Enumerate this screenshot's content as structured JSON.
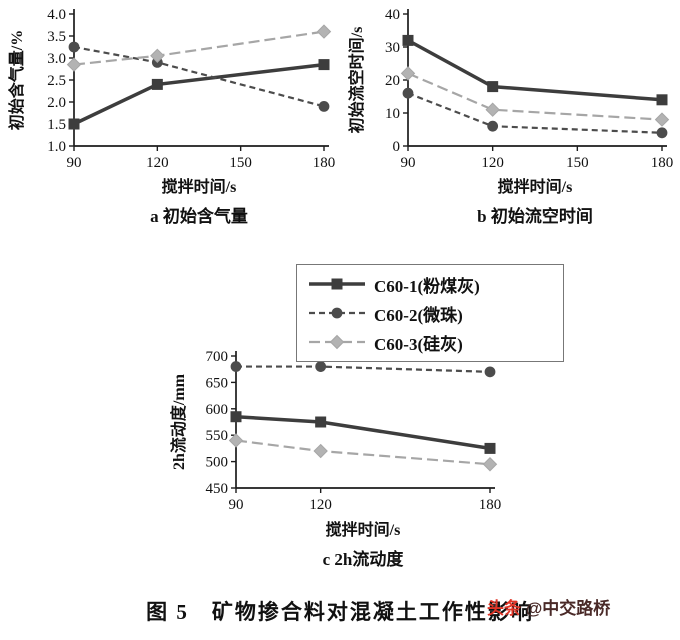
{
  "figure": {
    "caption": "图 5　矿物掺合料对混凝土工作性影响",
    "watermark_prefix": "头条",
    "watermark_handle": "@中交路桥"
  },
  "series_styles": [
    {
      "color": "#3d3d3d",
      "width": 3.5,
      "dash": "",
      "marker": "square",
      "mcolor": "#3d3d3d"
    },
    {
      "color": "#4c4c4c",
      "width": 2.2,
      "dash": "6,4",
      "marker": "circle",
      "mcolor": "#4c4c4c"
    },
    {
      "color": "#a6a6a6",
      "width": 2.2,
      "dash": "11,5",
      "marker": "diamond",
      "mcolor": "#b3b3b3"
    }
  ],
  "chart_data": [
    {
      "id": "a",
      "type": "line",
      "title": "a  初始含气量",
      "xlabel": "搅拌时间/s",
      "ylabel": "初始含气量/%",
      "xlim": [
        90,
        180
      ],
      "x": [
        90,
        120,
        180
      ],
      "xticks": [
        90,
        120,
        150,
        180
      ],
      "ylim": [
        1.0,
        4.0
      ],
      "yticks": [
        1.0,
        1.5,
        2.0,
        2.5,
        3.0,
        3.5,
        4.0
      ],
      "ydecimals": 1,
      "series": [
        {
          "name": "C60-1(粉煤灰)",
          "values": [
            1.5,
            2.4,
            2.85
          ]
        },
        {
          "name": "C60-2(微珠)",
          "values": [
            3.25,
            2.9,
            1.9
          ]
        },
        {
          "name": "C60-3(硅灰)",
          "values": [
            2.85,
            3.05,
            3.6
          ]
        }
      ]
    },
    {
      "id": "b",
      "type": "line",
      "title": "b  初始流空时间",
      "xlabel": "搅拌时间/s",
      "ylabel": "初始流空时间/s",
      "xlim": [
        90,
        180
      ],
      "x": [
        90,
        120,
        180
      ],
      "xticks": [
        90,
        120,
        150,
        180
      ],
      "ylim": [
        0,
        40
      ],
      "yticks": [
        0,
        10,
        20,
        30,
        40
      ],
      "ydecimals": 0,
      "series": [
        {
          "name": "C60-1(粉煤灰)",
          "values": [
            32,
            18,
            14
          ]
        },
        {
          "name": "C60-2(微珠)",
          "values": [
            16,
            6,
            4
          ]
        },
        {
          "name": "C60-3(硅灰)",
          "values": [
            22,
            11,
            8
          ]
        }
      ]
    },
    {
      "id": "c",
      "type": "line",
      "title": "c  2h流动度",
      "xlabel": "搅拌时间/s",
      "ylabel": "2h流动度/mm",
      "xlim": [
        90,
        180
      ],
      "x": [
        90,
        120,
        180
      ],
      "xticks": [
        90,
        120,
        180
      ],
      "ylim": [
        450,
        700
      ],
      "yticks": [
        450,
        500,
        550,
        600,
        650,
        700
      ],
      "ydecimals": 0,
      "series": [
        {
          "name": "C60-1(粉煤灰)",
          "values": [
            585,
            575,
            525
          ]
        },
        {
          "name": "C60-2(微珠)",
          "values": [
            680,
            680,
            670
          ]
        },
        {
          "name": "C60-3(硅灰)",
          "values": [
            540,
            520,
            495
          ]
        }
      ]
    }
  ]
}
